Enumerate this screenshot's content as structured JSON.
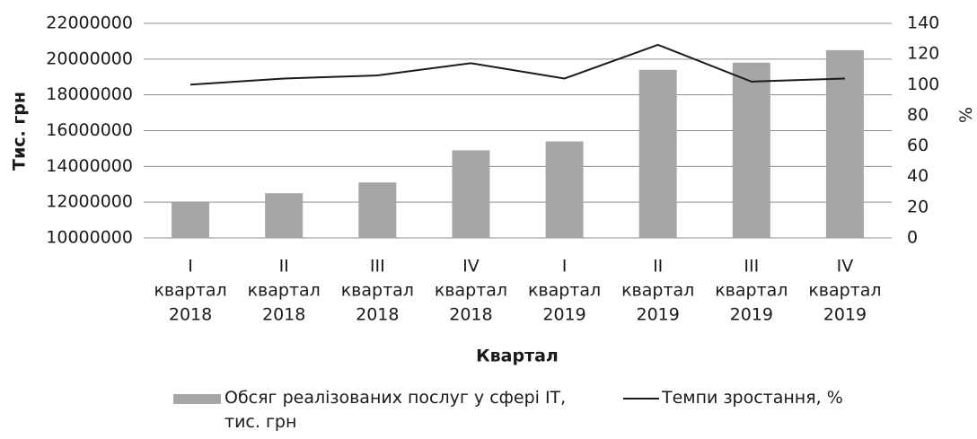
{
  "chart_data": {
    "type": "bar_line",
    "categories": [
      [
        "I",
        "квартал",
        "2018"
      ],
      [
        "II",
        "квартал",
        "2018"
      ],
      [
        "III",
        "квартал",
        "2018"
      ],
      [
        "IV",
        "квартал",
        "2018"
      ],
      [
        "I",
        "квартал",
        "2019"
      ],
      [
        "II",
        "квартал",
        "2019"
      ],
      [
        "III",
        "квартал",
        "2019"
      ],
      [
        "IV",
        "квартал",
        "2019"
      ]
    ],
    "series": [
      {
        "name": "Обсяг реалізованих послуг у сфері IT, тис. грн",
        "type": "bar",
        "color": "#a6a6a6",
        "values": [
          12000000,
          12500000,
          13100000,
          14900000,
          15400000,
          19400000,
          19800000,
          20500000
        ]
      },
      {
        "name": "Темпи зростання, %",
        "type": "line",
        "color": "#1a1a1a",
        "axis": "y2",
        "values": [
          100,
          104,
          106,
          114,
          104,
          126,
          102,
          104
        ]
      }
    ],
    "ylabel": "Тис. грн",
    "y2label": "%",
    "xlabel": "Квартал",
    "ylim": [
      10000000,
      22000000
    ],
    "yticks": [
      10000000,
      12000000,
      14000000,
      16000000,
      18000000,
      20000000,
      22000000
    ],
    "y2lim": [
      0,
      140
    ],
    "y2ticks": [
      0,
      20,
      40,
      60,
      80,
      100,
      120,
      140
    ],
    "grid": true,
    "legend": "bottom"
  }
}
